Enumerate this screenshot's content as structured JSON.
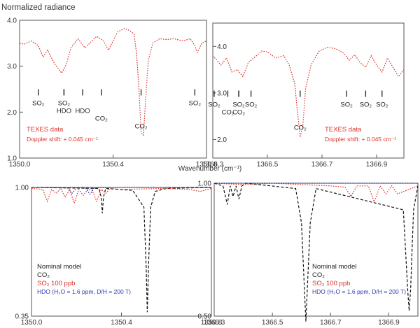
{
  "figure_title": "Normalized radiance",
  "xlabel": "Wavenumber (cm⁻¹)",
  "chart_data": [
    {
      "type": "line",
      "panel": "top-left",
      "x_ticks": [
        "1350.0",
        "1350.4",
        "1350.8"
      ],
      "x_tick_values": [
        1350.0,
        1350.4,
        1350.8
      ],
      "y_ticks": [
        "1.0",
        "2.0",
        "3.0",
        "4.0"
      ],
      "y_tick_values": [
        1.0,
        2.0,
        3.0,
        4.0
      ],
      "xlim": [
        1350.0,
        1350.8
      ],
      "ylim": [
        1.0,
        4.0
      ],
      "series": [
        {
          "name": "TEXES data",
          "color": "#d9342b",
          "style": "dotted",
          "x": [
            1350.0,
            1350.02,
            1350.05,
            1350.08,
            1350.1,
            1350.12,
            1350.15,
            1350.18,
            1350.2,
            1350.22,
            1350.25,
            1350.28,
            1350.3,
            1350.33,
            1350.36,
            1350.38,
            1350.4,
            1350.42,
            1350.45,
            1350.47,
            1350.49,
            1350.5,
            1350.51,
            1350.52,
            1350.53,
            1350.54,
            1350.55,
            1350.57,
            1350.6,
            1350.63,
            1350.66,
            1350.7,
            1350.73,
            1350.75,
            1350.76,
            1350.78,
            1350.8
          ],
          "values": [
            3.5,
            3.48,
            3.55,
            3.45,
            3.2,
            3.35,
            3.05,
            2.85,
            3.05,
            3.4,
            3.6,
            3.4,
            3.5,
            3.65,
            3.55,
            3.35,
            3.55,
            3.75,
            3.82,
            3.78,
            3.7,
            3.3,
            2.6,
            1.55,
            1.5,
            2.3,
            3.1,
            3.5,
            3.6,
            3.58,
            3.6,
            3.55,
            3.6,
            3.45,
            3.3,
            3.5,
            3.55
          ]
        }
      ],
      "markers": [
        {
          "label": "SO₂",
          "x": 1350.08,
          "row": 1
        },
        {
          "label": "SO₂",
          "x": 1350.19,
          "row": 1
        },
        {
          "label": "HDO",
          "x": 1350.19,
          "row": 2
        },
        {
          "label": "HDO",
          "x": 1350.27,
          "row": 2
        },
        {
          "label": "CO₂",
          "x": 1350.35,
          "row": 3
        },
        {
          "label": "CO₂",
          "x": 1350.52,
          "row": 4
        },
        {
          "label": "SO₂",
          "x": 1350.75,
          "row": 1
        }
      ],
      "legend": [
        "TEXES data",
        "Doppler shift: + 0.045 cm⁻¹"
      ]
    },
    {
      "type": "line",
      "panel": "top-right",
      "x_ticks": [
        "1366.3",
        "1366.5",
        "1366.7",
        "1366.9"
      ],
      "x_tick_values": [
        1366.3,
        1366.5,
        1366.7,
        1366.9
      ],
      "y_ticks": [
        "2.0",
        "3.0",
        "4.0"
      ],
      "y_tick_values": [
        2.0,
        3.0,
        4.0
      ],
      "xlim": [
        1366.3,
        1367.0
      ],
      "ylim": [
        1.6,
        4.5
      ],
      "series": [
        {
          "name": "TEXES data",
          "color": "#d9342b",
          "style": "dotted",
          "x": [
            1366.3,
            1366.33,
            1366.35,
            1366.37,
            1366.39,
            1366.41,
            1366.43,
            1366.45,
            1366.48,
            1366.5,
            1366.53,
            1366.56,
            1366.58,
            1366.6,
            1366.61,
            1366.62,
            1366.63,
            1366.64,
            1366.66,
            1366.69,
            1366.72,
            1366.75,
            1366.78,
            1366.8,
            1366.82,
            1366.84,
            1366.86,
            1366.88,
            1366.9,
            1366.92,
            1366.94,
            1366.96,
            1366.98,
            1367.0
          ],
          "values": [
            3.8,
            3.6,
            3.75,
            3.45,
            3.5,
            3.35,
            3.65,
            3.75,
            3.9,
            3.88,
            3.75,
            3.8,
            3.6,
            3.2,
            2.6,
            2.05,
            2.3,
            3.1,
            3.6,
            3.9,
            3.98,
            3.95,
            3.85,
            3.7,
            3.82,
            3.65,
            3.55,
            3.8,
            3.6,
            3.45,
            3.75,
            3.55,
            3.35,
            3.5
          ]
        }
      ],
      "markers": [
        {
          "label": "SO₂",
          "x": 1366.305,
          "row": 1
        },
        {
          "label": "CO₂",
          "x": 1366.355,
          "row": 2
        },
        {
          "label": "SO₂",
          "x": 1366.395,
          "row": 1
        },
        {
          "label": "CO₂",
          "x": 1366.395,
          "row": 2
        },
        {
          "label": "SO₂",
          "x": 1366.44,
          "row": 1
        },
        {
          "label": "CO₂",
          "x": 1366.62,
          "row": 4
        },
        {
          "label": "SO₂",
          "x": 1366.79,
          "row": 1
        },
        {
          "label": "SO₂",
          "x": 1366.86,
          "row": 1
        },
        {
          "label": "SO₂",
          "x": 1366.92,
          "row": 1
        }
      ],
      "legend": [
        "TEXES data",
        "Doppler shift: + 0.045 cm⁻¹"
      ]
    },
    {
      "type": "line",
      "panel": "bottom-left",
      "x_ticks": [
        "1350.0",
        "1350.4",
        "1350.8"
      ],
      "x_tick_values": [
        1350.0,
        1350.4,
        1350.8
      ],
      "y_ticks": [
        "0.35",
        "1.00"
      ],
      "y_tick_values": [
        0.35,
        1.0
      ],
      "xlim": [
        1350.0,
        1350.8
      ],
      "ylim": [
        0.35,
        1.0
      ],
      "series": [
        {
          "name": "CO₂",
          "color": "#111111",
          "style": "dashed",
          "x": [
            1350.0,
            1350.3,
            1350.31,
            1350.315,
            1350.32,
            1350.33,
            1350.45,
            1350.5,
            1350.51,
            1350.515,
            1350.52,
            1350.53,
            1350.55,
            1350.6,
            1350.8
          ],
          "values": [
            1.0,
            0.995,
            0.95,
            0.87,
            0.95,
            0.995,
            0.985,
            0.9,
            0.6,
            0.37,
            0.6,
            0.9,
            0.98,
            0.995,
            1.0
          ]
        },
        {
          "name": "SO₂ 100 ppb",
          "color": "#d9342b",
          "style": "dotted",
          "x": [
            1350.0,
            1350.05,
            1350.07,
            1350.09,
            1350.11,
            1350.13,
            1350.15,
            1350.17,
            1350.19,
            1350.21,
            1350.23,
            1350.25,
            1350.27,
            1350.29,
            1350.31,
            1350.33,
            1350.35,
            1350.4,
            1350.6,
            1350.7,
            1350.75,
            1350.8
          ],
          "values": [
            0.995,
            0.99,
            0.93,
            0.99,
            0.97,
            0.995,
            0.95,
            0.99,
            0.92,
            0.99,
            0.96,
            0.99,
            0.985,
            0.93,
            0.99,
            0.97,
            0.995,
            0.99,
            0.995,
            0.99,
            0.98,
            0.995
          ]
        },
        {
          "name": "HDO (H₂O = 1.6 ppm, D/H = 200 T)",
          "color": "#2a3cb0",
          "style": "dotted",
          "x": [
            1350.0,
            1350.16,
            1350.18,
            1350.2,
            1350.24,
            1350.26,
            1350.28,
            1350.4,
            1350.8
          ],
          "values": [
            1.0,
            0.998,
            0.97,
            0.998,
            0.998,
            0.965,
            0.998,
            1.0,
            1.0
          ]
        }
      ],
      "legend": [
        "Nominal model",
        "CO₂",
        "SO₂ 100 ppb",
        "HDO (H₂O = 1.6 ppm, D/H = 200 T)"
      ]
    },
    {
      "type": "line",
      "panel": "bottom-right",
      "x_ticks": [
        "1366.3",
        "1366.5",
        "1366.7",
        "1366.9"
      ],
      "x_tick_values": [
        1366.3,
        1366.5,
        1366.7,
        1366.9
      ],
      "y_ticks": [
        "0.50",
        "1.00"
      ],
      "y_tick_values": [
        0.5,
        1.0
      ],
      "xlim": [
        1366.3,
        1367.0
      ],
      "ylim": [
        0.5,
        1.0
      ],
      "series": [
        {
          "name": "CO₂",
          "color": "#111111",
          "style": "dashed",
          "x": [
            1366.3,
            1366.33,
            1366.345,
            1366.355,
            1366.365,
            1366.375,
            1366.385,
            1366.395,
            1366.41,
            1366.58,
            1366.6,
            1366.61,
            1366.615,
            1366.62,
            1366.63,
            1366.65,
            1366.95,
            1366.965,
            1366.97,
            1366.975,
            1366.985,
            1367.0
          ],
          "values": [
            1.0,
            0.99,
            0.92,
            0.99,
            0.95,
            0.99,
            0.94,
            0.99,
            1.0,
            0.98,
            0.85,
            0.6,
            0.48,
            0.6,
            0.85,
            0.98,
            0.9,
            0.6,
            0.52,
            0.6,
            0.9,
            0.99
          ]
        },
        {
          "name": "SO₂ 100 ppb",
          "color": "#d9342b",
          "style": "dotted",
          "x": [
            1366.3,
            1366.4,
            1366.5,
            1366.7,
            1366.75,
            1366.77,
            1366.79,
            1366.83,
            1366.85,
            1366.87,
            1366.89,
            1366.91,
            1366.93,
            1367.0
          ],
          "values": [
            1.0,
            0.995,
            1.0,
            0.99,
            0.985,
            0.95,
            0.99,
            0.99,
            0.93,
            0.99,
            0.96,
            0.99,
            0.96,
            0.99
          ]
        },
        {
          "name": "HDO (H₂O = 1.6 ppm, D/H = 200 T)",
          "color": "#2a3cb0",
          "style": "dotted",
          "x": [
            1366.3,
            1366.6,
            1367.0
          ],
          "values": [
            1.0,
            1.0,
            1.0
          ]
        }
      ],
      "legend": [
        "Nominal model",
        "CO₂",
        "SO₂ 100 ppb",
        "HDO (H₂O = 1.6 ppm, D/H = 200 T)"
      ]
    }
  ]
}
